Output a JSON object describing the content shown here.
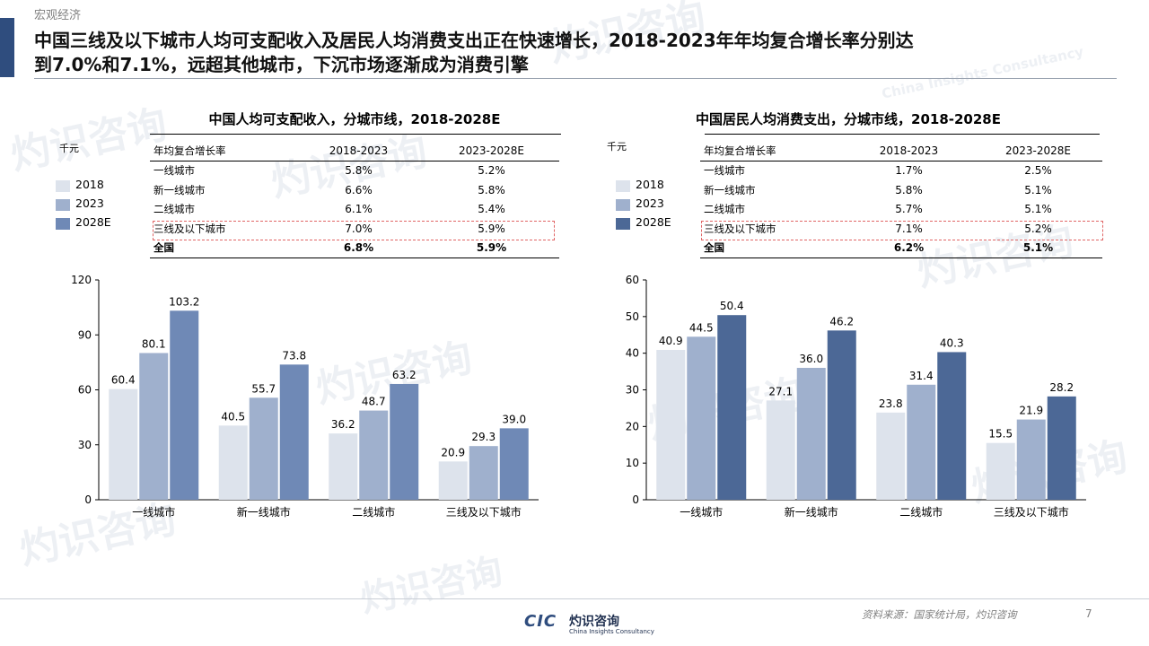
{
  "header": {
    "section": "宏观经济",
    "headline_line1": "中国三线及以下城市人均可支配收入及居民人均消费支出正在快速增长，2018-2023年年均复合增长率分别达",
    "headline_line2": "到7.0%和7.1%，远超其他城市，下沉市场逐渐成为消费引擎"
  },
  "colors": {
    "s2018": "#dde3ec",
    "s2023": "#9fb0cd",
    "s2028": "#6f89b6",
    "s2028_right": "#4c6896",
    "accent_bar": "#2f4d7e",
    "highlight_box": "#e06666"
  },
  "watermark": {
    "cn": "灼识咨询",
    "en": "China Insights Consultancy",
    "cic": "CIC"
  },
  "left_panel": {
    "title": "中国人均可支配收入，分城市线，2018-2028E",
    "unit": "千元",
    "legend": [
      "2018",
      "2023",
      "2028E"
    ],
    "cagr_table": {
      "header": [
        "年均复合增长率",
        "2018-2023",
        "2023-2028E"
      ],
      "rows": [
        {
          "label": "一线城市",
          "a": "5.8%",
          "b": "5.2%"
        },
        {
          "label": "新一线城市",
          "a": "6.6%",
          "b": "5.8%"
        },
        {
          "label": "二线城市",
          "a": "6.1%",
          "b": "5.4%"
        },
        {
          "label": "三线及以下城市",
          "a": "7.0%",
          "b": "5.9%"
        }
      ],
      "total": {
        "label": "全国",
        "a": "6.8%",
        "b": "5.9%"
      }
    }
  },
  "right_panel": {
    "title": "中国居民人均消费支出，分城市线，2018-2028E",
    "unit": "千元",
    "legend": [
      "2018",
      "2023",
      "2028E"
    ],
    "cagr_table": {
      "header": [
        "年均复合增长率",
        "2018-2023",
        "2023-2028E"
      ],
      "rows": [
        {
          "label": "一线城市",
          "a": "1.7%",
          "b": "2.5%"
        },
        {
          "label": "新一线城市",
          "a": "5.8%",
          "b": "5.1%"
        },
        {
          "label": "二线城市",
          "a": "5.7%",
          "b": "5.1%"
        },
        {
          "label": "三线及以下城市",
          "a": "7.1%",
          "b": "5.2%"
        }
      ],
      "total": {
        "label": "全国",
        "a": "6.2%",
        "b": "5.1%"
      }
    }
  },
  "chart_data": [
    {
      "type": "bar",
      "title": "中国人均可支配收入，分城市线，2018-2028E",
      "ylabel": "千元",
      "categories": [
        "一线城市",
        "新一线城市",
        "二线城市",
        "三线及以下城市"
      ],
      "series": [
        {
          "name": "2018",
          "values": [
            60.4,
            40.5,
            36.2,
            20.9
          ]
        },
        {
          "name": "2023",
          "values": [
            80.1,
            55.7,
            48.7,
            29.3
          ]
        },
        {
          "name": "2028E",
          "values": [
            103.2,
            73.8,
            63.2,
            39.0
          ]
        }
      ],
      "ylim": [
        0,
        120
      ],
      "yticks": [
        0,
        30,
        60,
        90,
        120
      ],
      "grid": false,
      "legend": "top-left"
    },
    {
      "type": "bar",
      "title": "中国居民人均消费支出，分城市线，2018-2028E",
      "ylabel": "千元",
      "categories": [
        "一线城市",
        "新一线城市",
        "二线城市",
        "三线及以下城市"
      ],
      "series": [
        {
          "name": "2018",
          "values": [
            40.9,
            27.1,
            23.8,
            15.5
          ]
        },
        {
          "name": "2023",
          "values": [
            44.5,
            36.0,
            31.4,
            21.9
          ]
        },
        {
          "name": "2028E",
          "values": [
            50.4,
            46.2,
            40.3,
            28.2
          ]
        }
      ],
      "ylim": [
        0,
        60
      ],
      "yticks": [
        0,
        10,
        20,
        30,
        40,
        50,
        60
      ],
      "grid": false,
      "legend": "top-left"
    }
  ],
  "footer": {
    "source": "资料来源：国家统计局，灼识咨询",
    "page": "7",
    "logo_cic": "CIC",
    "logo_cn": "灼识咨询",
    "logo_en": "China Insights Consultancy"
  }
}
